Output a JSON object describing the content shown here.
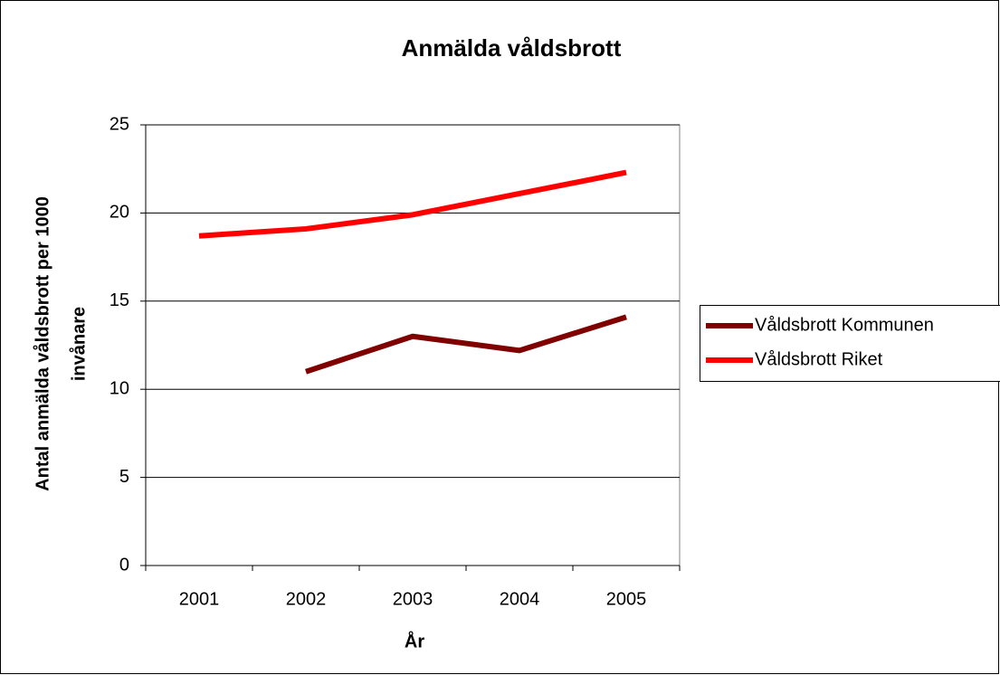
{
  "chart_data": {
    "type": "line",
    "title": "Anmälda våldsbrott",
    "xlabel": "År",
    "ylabel": [
      "Antal anmälda våldsbrott per 1000",
      "invånare"
    ],
    "categories": [
      "2001",
      "2002",
      "2003",
      "2004",
      "2005"
    ],
    "series": [
      {
        "name": "Våldsbrott Kommunen",
        "color": "#800000",
        "values": [
          null,
          11.0,
          13.0,
          12.2,
          14.1
        ]
      },
      {
        "name": "Våldsbrott Riket",
        "color": "#ff0000",
        "values": [
          18.7,
          19.1,
          19.9,
          21.1,
          22.3
        ]
      }
    ],
    "ylim": [
      0,
      25
    ],
    "yticks": [
      0,
      5,
      10,
      15,
      20,
      25
    ],
    "grid": true,
    "legend": "right"
  }
}
